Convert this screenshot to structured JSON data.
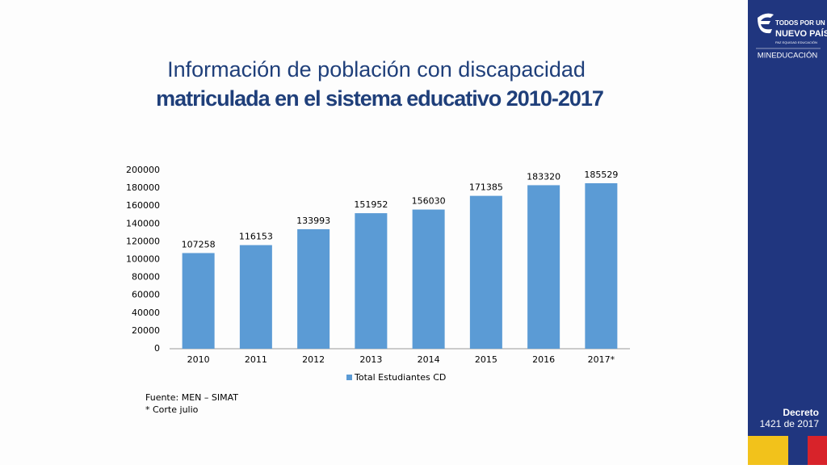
{
  "title_line1": "Información de población con discapacidad",
  "title_line2": "matriculada en el sistema educativo  2010-2017",
  "notes": [
    "Fuente: MEN – SIMAT",
    "* Corte julio"
  ],
  "sidebar": {
    "logo_top": "TODOS POR UN",
    "logo_main": "NUEVO PAÍS",
    "logo_sub": "PAZ   EQUIDAD   EDUCACIÓN",
    "ministry": "MINEDUCACIÓN",
    "decree_title": "Decreto",
    "decree_number": "1421 de 2017"
  },
  "chart_data": {
    "type": "bar",
    "categories": [
      "2010",
      "2011",
      "2012",
      "2013",
      "2014",
      "2015",
      "2016",
      "2017*"
    ],
    "series": [
      {
        "name": "Total Estudiantes CD",
        "color": "#5b9bd5",
        "values": [
          107258,
          116153,
          133993,
          151952,
          156030,
          171385,
          183320,
          185529
        ]
      }
    ],
    "ylim": [
      0,
      200000
    ],
    "yticks": [
      0,
      20000,
      40000,
      60000,
      80000,
      100000,
      120000,
      140000,
      160000,
      180000,
      200000
    ],
    "grid": false,
    "legend": "bottom"
  }
}
